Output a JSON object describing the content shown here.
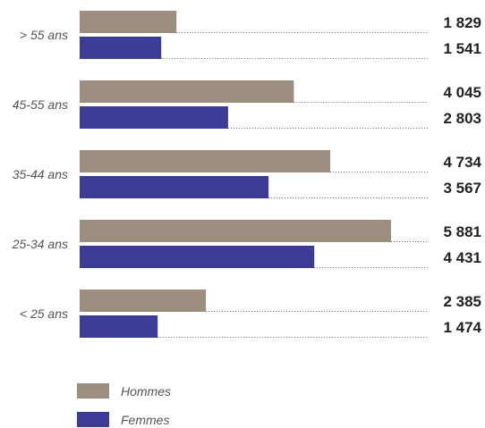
{
  "chart_data": {
    "type": "bar",
    "orientation": "horizontal",
    "categories": [
      "> 55 ans",
      "45-55 ans",
      "35-44 ans",
      "25-34 ans",
      "< 25 ans"
    ],
    "series": [
      {
        "name": "Hommes",
        "color": "#9c8f7f",
        "values": [
          1829,
          4045,
          4734,
          5881,
          2385
        ]
      },
      {
        "name": "Femmes",
        "color": "#3c3c96",
        "values": [
          1541,
          2803,
          3567,
          4431,
          1474
        ]
      }
    ],
    "value_labels": [
      [
        "1 829",
        "4 045",
        "4 734",
        "5 881",
        "2 385"
      ],
      [
        "1 541",
        "2 803",
        "3 567",
        "4 431",
        "1 474"
      ]
    ],
    "xlim": [
      0,
      5881
    ],
    "grid": false,
    "legend_position": "bottom-left"
  }
}
